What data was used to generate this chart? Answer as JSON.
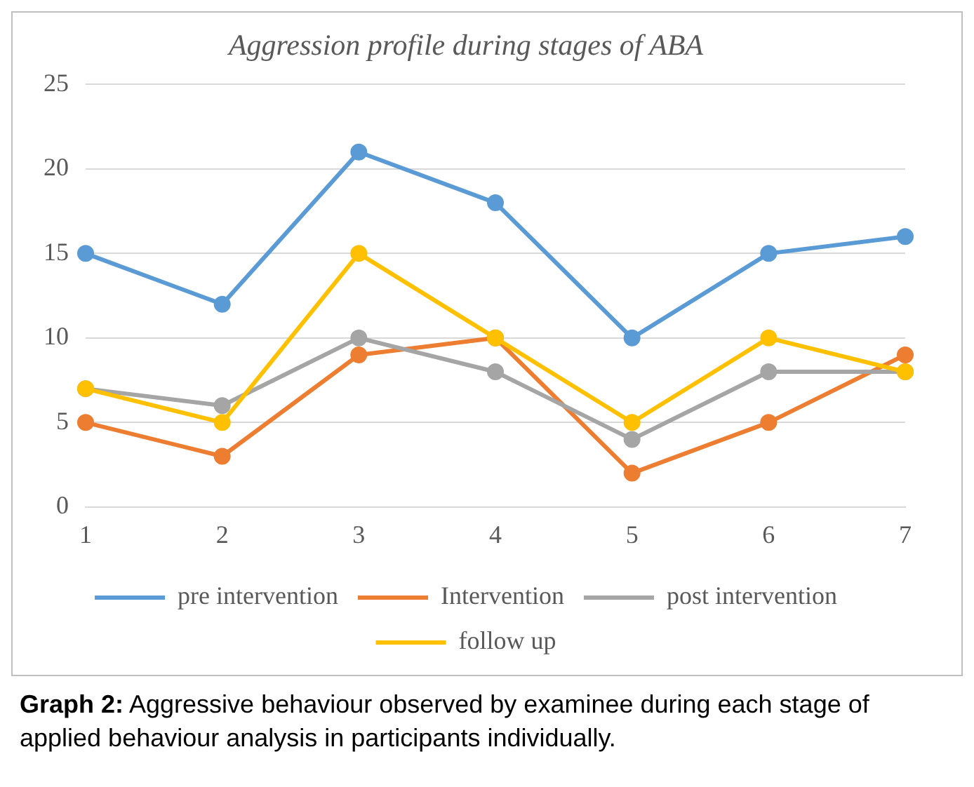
{
  "chart_data": {
    "type": "line",
    "title": "Aggression profile during stages of ABA",
    "categories": [
      "1",
      "2",
      "3",
      "4",
      "5",
      "6",
      "7"
    ],
    "series": [
      {
        "name": "pre intervention",
        "color": "#5b9bd5",
        "values": [
          15,
          12,
          21,
          18,
          10,
          15,
          16
        ]
      },
      {
        "name": "Intervention",
        "color": "#ed7d31",
        "values": [
          5,
          3,
          9,
          10,
          2,
          5,
          9
        ]
      },
      {
        "name": "post intervention",
        "color": "#a5a5a5",
        "values": [
          7,
          6,
          10,
          8,
          4,
          8,
          8
        ]
      },
      {
        "name": "follow up",
        "color": "#ffc000",
        "values": [
          7,
          5,
          15,
          10,
          5,
          10,
          8
        ]
      }
    ],
    "ylim": [
      0,
      25
    ],
    "yticks": [
      0,
      5,
      10,
      15,
      20,
      25
    ],
    "grid": "y",
    "legend": "bottom",
    "marker": "circle",
    "line_style": "solid",
    "annotations": [
      "Graph 2: Aggressive behaviour observed by examinee during each stage of applied behaviour analysis in participants individually."
    ]
  }
}
